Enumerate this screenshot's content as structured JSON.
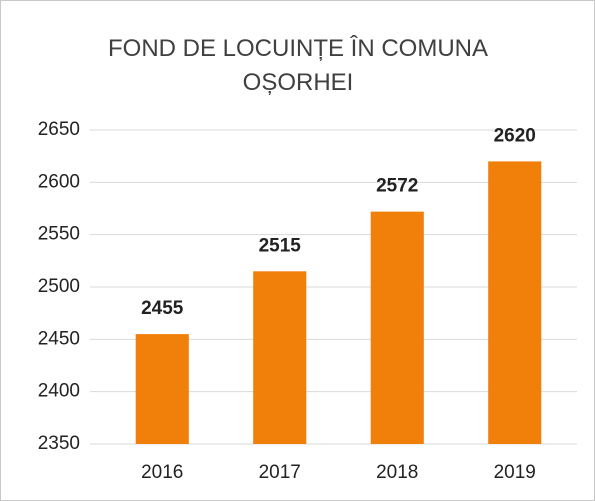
{
  "chart_data": {
    "type": "bar",
    "title": "FOND DE LOCUINȚE ÎN COMUNA OȘORHEI",
    "categories": [
      "2016",
      "2017",
      "2018",
      "2019"
    ],
    "values": [
      2455,
      2515,
      2572,
      2620
    ],
    "color": "#f0800a",
    "ylim": [
      2350,
      2650
    ],
    "yticks": [
      2350,
      2400,
      2450,
      2500,
      2550,
      2600,
      2650
    ],
    "grid": true
  }
}
